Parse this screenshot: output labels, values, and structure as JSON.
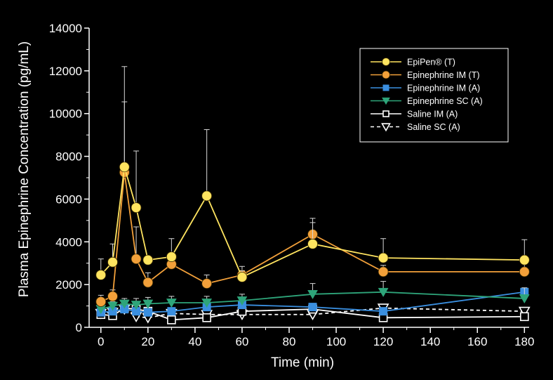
{
  "chart_data": {
    "type": "line",
    "title": "",
    "xlabel": "Time (min)",
    "ylabel": "Plasma Epinephrine Concentration (pg/mL)",
    "xlim": [
      -5,
      182
    ],
    "ylim": [
      0,
      14000
    ],
    "xticks": [
      0,
      20,
      40,
      60,
      80,
      100,
      120,
      140,
      160,
      180
    ],
    "yticks": [
      0,
      2000,
      4000,
      6000,
      8000,
      10000,
      12000,
      14000
    ],
    "grid": false,
    "legend_position": "top-right",
    "series": [
      {
        "name": "EpiPen® (T)",
        "color": "#ffe460",
        "marker": "circle-filled",
        "line": "solid",
        "x": [
          0,
          5,
          10,
          15,
          20,
          30,
          45,
          60,
          90,
          120,
          180
        ],
        "y": [
          2450,
          3050,
          7500,
          5600,
          3150,
          3300,
          6150,
          2350,
          3900,
          3250,
          3150
        ],
        "error": [
          750,
          850,
          4700,
          2650,
          0,
          850,
          3100,
          300,
          1200,
          900,
          950
        ]
      },
      {
        "name": "Epinephrine IM (T)",
        "color": "#f2a03a",
        "marker": "circle-filled",
        "line": "solid",
        "x": [
          0,
          5,
          10,
          15,
          20,
          30,
          45,
          60,
          90,
          120,
          180
        ],
        "y": [
          1200,
          1450,
          7250,
          3200,
          2100,
          2950,
          2050,
          2450,
          4350,
          2600,
          2600
        ],
        "error": [
          300,
          300,
          3300,
          1500,
          450,
          300,
          400,
          400,
          550,
          300,
          500
        ]
      },
      {
        "name": "Epinephrine IM (A)",
        "color": "#3a8fe0",
        "marker": "square-filled",
        "line": "solid",
        "x": [
          0,
          5,
          10,
          15,
          20,
          30,
          45,
          60,
          90,
          120,
          180
        ],
        "y": [
          700,
          750,
          850,
          750,
          700,
          750,
          950,
          1050,
          950,
          750,
          1650
        ],
        "error": [
          0,
          0,
          0,
          0,
          0,
          0,
          0,
          0,
          0,
          0,
          0
        ]
      },
      {
        "name": "Epinephrine SC (A)",
        "color": "#2ea57a",
        "marker": "triangle-down-filled",
        "line": "solid",
        "x": [
          0,
          5,
          10,
          15,
          20,
          30,
          45,
          60,
          90,
          120,
          180
        ],
        "y": [
          850,
          1000,
          1100,
          1050,
          1100,
          1150,
          1150,
          1250,
          1550,
          1650,
          1350
        ],
        "error": [
          200,
          200,
          250,
          300,
          300,
          300,
          300,
          300,
          500,
          500,
          500
        ]
      },
      {
        "name": "Saline IM (A)",
        "color": "#ffffff",
        "marker": "square-open",
        "line": "solid",
        "x": [
          0,
          5,
          10,
          15,
          20,
          30,
          45,
          60,
          90,
          120,
          180
        ],
        "y": [
          600,
          550,
          900,
          850,
          750,
          350,
          450,
          750,
          850,
          450,
          500
        ],
        "error": [
          0,
          0,
          0,
          0,
          0,
          0,
          0,
          0,
          0,
          0,
          0
        ]
      },
      {
        "name": "Saline SC (A)",
        "color": "#ffffff",
        "marker": "triangle-down-open",
        "line": "dashed",
        "x": [
          0,
          5,
          10,
          15,
          20,
          30,
          45,
          60,
          90,
          120,
          180
        ],
        "y": [
          650,
          700,
          850,
          500,
          450,
          650,
          600,
          600,
          600,
          900,
          750
        ],
        "error": [
          0,
          0,
          0,
          0,
          0,
          0,
          0,
          0,
          0,
          0,
          0
        ]
      }
    ]
  }
}
